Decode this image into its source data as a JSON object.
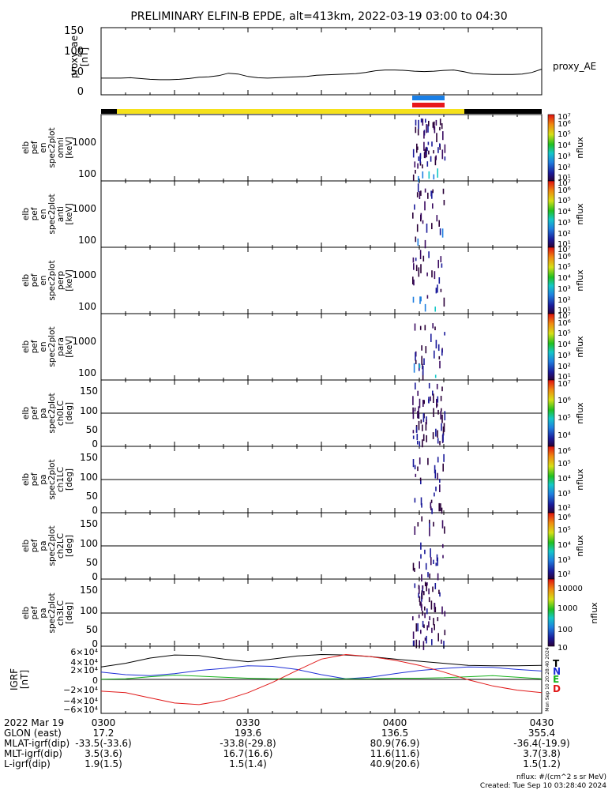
{
  "title": "PRELIMINARY ELFIN-B EPDE, alt=413km, 2022-03-19 03:00 to 04:30",
  "colors": {
    "bar_yellow": "#f5e11b",
    "bar_black": "#000000",
    "bar_blue": "#1a7fe6",
    "bar_red": "#e8171b"
  },
  "ae_panel": {
    "ylabel_lines": [
      "proxy_ae",
      "[nT]"
    ],
    "yticks": [
      "0",
      "50",
      "100",
      "150"
    ],
    "series_label": "proxy_AE",
    "chart_data": {
      "type": "line",
      "x_minutes": [
        0,
        2,
        4,
        6,
        8,
        10,
        12,
        14,
        16,
        18,
        20,
        22,
        24,
        26,
        28,
        30,
        32,
        34,
        36,
        38,
        40,
        42,
        44,
        46,
        48,
        50,
        52,
        54,
        56,
        58,
        60,
        62,
        64,
        66,
        68,
        70,
        72,
        74,
        76,
        78,
        80,
        82,
        84,
        86,
        88,
        90
      ],
      "y": [
        36,
        36,
        36,
        37,
        35,
        33,
        32,
        32,
        33,
        35,
        38,
        39,
        42,
        48,
        46,
        40,
        37,
        36,
        37,
        38,
        39,
        40,
        43,
        44,
        45,
        46,
        47,
        50,
        54,
        56,
        56,
        55,
        53,
        52,
        53,
        55,
        56,
        52,
        47,
        46,
        45,
        45,
        45,
        46,
        50,
        58
      ],
      "ylim": [
        -5,
        160
      ]
    }
  },
  "spec_panels": [
    {
      "label_lines": [
        "elb",
        "pef",
        "en",
        "spec2plot",
        "omni",
        "[keV]"
      ],
      "yticks": [
        "100",
        "1000"
      ]
    },
    {
      "label_lines": [
        "elb",
        "pef",
        "en",
        "spec2plot",
        "anti",
        "[keV]"
      ],
      "yticks": [
        "100",
        "1000"
      ]
    },
    {
      "label_lines": [
        "elb",
        "pef",
        "en",
        "spec2plot",
        "perp",
        "[keV]"
      ],
      "yticks": [
        "100",
        "1000"
      ]
    },
    {
      "label_lines": [
        "elb",
        "pef",
        "en",
        "spec2plot",
        "para",
        "[keV]"
      ],
      "yticks": [
        "100",
        "1000"
      ]
    },
    {
      "label_lines": [
        "elb",
        "pef",
        "pa",
        "spec2plot",
        "ch0LC",
        "[deg]"
      ],
      "yticks": [
        "0",
        "50",
        "100",
        "150"
      ]
    },
    {
      "label_lines": [
        "elb",
        "pef",
        "pa",
        "spec2plot",
        "ch1LC",
        "[deg]"
      ],
      "yticks": [
        "0",
        "50",
        "100",
        "150"
      ]
    },
    {
      "label_lines": [
        "elb",
        "pef",
        "pa",
        "spec2plot",
        "ch2LC",
        "[deg]"
      ],
      "yticks": [
        "0",
        "50",
        "100",
        "150"
      ]
    },
    {
      "label_lines": [
        "elb",
        "pef",
        "pa",
        "spec2plot",
        "ch3LC",
        "[deg]"
      ],
      "yticks": [
        "0",
        "50",
        "100",
        "150"
      ]
    }
  ],
  "colorbars": [
    {
      "ticks": [
        "10¹",
        "10²",
        "10³",
        "10⁴",
        "10⁵",
        "10⁶",
        "10⁷"
      ],
      "label": "nflux"
    },
    {
      "ticks": [
        "10¹",
        "10²",
        "10³",
        "10⁴",
        "10⁵",
        "10⁶",
        "10⁷"
      ],
      "label": "nflux"
    },
    {
      "ticks": [
        "10¹",
        "10²",
        "10³",
        "10⁴",
        "10⁵",
        "10⁶",
        "10⁷"
      ],
      "label": "nflux"
    },
    {
      "ticks": [
        "10¹",
        "10²",
        "10³",
        "10⁴",
        "10⁵",
        "10⁶",
        "10⁷"
      ],
      "label": "nflux"
    },
    {
      "ticks": [
        "10⁴",
        "10⁵",
        "10⁶",
        "10⁷"
      ],
      "label": "nflux"
    },
    {
      "ticks": [
        "10²",
        "10³",
        "10⁴",
        "10⁵",
        "10⁶"
      ],
      "label": "nflux"
    },
    {
      "ticks": [
        "10²",
        "10³",
        "10⁴",
        "10⁵",
        "10⁶"
      ],
      "label": "nflux"
    },
    {
      "ticks": [
        "10",
        "100",
        "1000",
        "10000"
      ],
      "label": "nflux"
    }
  ],
  "grf_panel": {
    "label_lines": [
      "IGRF",
      "[nT]"
    ],
    "yticks": [
      "−6×10⁴",
      "−4×10⁴",
      "−2×10⁴",
      "0",
      "2×10⁴",
      "4×10⁴",
      "6×10⁴"
    ],
    "legend": [
      {
        "label": "T",
        "color": "#000000"
      },
      {
        "label": "N",
        "color": "#1f2fd6"
      },
      {
        "label": "E",
        "color": "#17b21c"
      },
      {
        "label": "D",
        "color": "#e01818"
      }
    ],
    "side_text": "Mon Sep 10 20:28:40 2024",
    "chart_data": {
      "type": "line",
      "ylim": [
        -65000,
        65000
      ],
      "x_minutes": [
        0,
        5,
        10,
        15,
        20,
        25,
        30,
        35,
        40,
        45,
        50,
        55,
        60,
        65,
        70,
        75,
        80,
        85,
        90
      ],
      "series": [
        {
          "label": "T",
          "color": "#000000",
          "values": [
            25000,
            32000,
            42000,
            48000,
            47000,
            40000,
            35000,
            40000,
            46000,
            49000,
            48000,
            45000,
            40000,
            36000,
            32000,
            28000,
            27000,
            27000,
            28000
          ]
        },
        {
          "label": "N",
          "color": "#1f2fd6",
          "values": [
            15000,
            10000,
            8000,
            12000,
            18000,
            22000,
            27000,
            26000,
            20000,
            10000,
            2000,
            5000,
            12000,
            18000,
            22000,
            25000,
            24000,
            20000,
            17000
          ]
        },
        {
          "label": "E",
          "color": "#17b21c",
          "values": [
            1000,
            2000,
            6000,
            9000,
            7000,
            5000,
            3000,
            2000,
            2000,
            2000,
            2000,
            2000,
            3000,
            3000,
            4000,
            6000,
            8000,
            5000,
            2000
          ]
        },
        {
          "label": "D",
          "color": "#e01818",
          "values": [
            -22000,
            -25000,
            -35000,
            -45000,
            -48000,
            -40000,
            -25000,
            -5000,
            18000,
            40000,
            49000,
            45000,
            38000,
            28000,
            15000,
            0,
            -12000,
            -20000,
            -25000
          ]
        }
      ]
    }
  },
  "xaxis": {
    "row_labels": [
      "2022 Mar 19",
      "GLON (east)",
      "MLAT-igrf(dip)",
      "MLT-igrf(dip)",
      "L-igrf(dip)"
    ],
    "columns": [
      {
        "values": [
          "0300",
          "17.2",
          "-33.5(-33.6)",
          "3.5(3.6)",
          "1.9(1.5)"
        ]
      },
      {
        "values": [
          "0330",
          "193.6",
          "-33.8(-29.8)",
          "16.7(16.6)",
          "1.5(1.4)"
        ]
      },
      {
        "values": [
          "0400",
          "136.5",
          "80.9(76.9)",
          "11.6(11.6)",
          "40.9(20.6)"
        ]
      },
      {
        "values": [
          "0430",
          "355.4",
          "-36.4(-19.9)",
          "3.7(3.8)",
          "1.5(1.2)"
        ]
      }
    ]
  },
  "footer": {
    "units": "nflux: #/(cm^2 s sr MeV)",
    "created": "Created: Tue Sep 10 03:28:40 2024"
  }
}
